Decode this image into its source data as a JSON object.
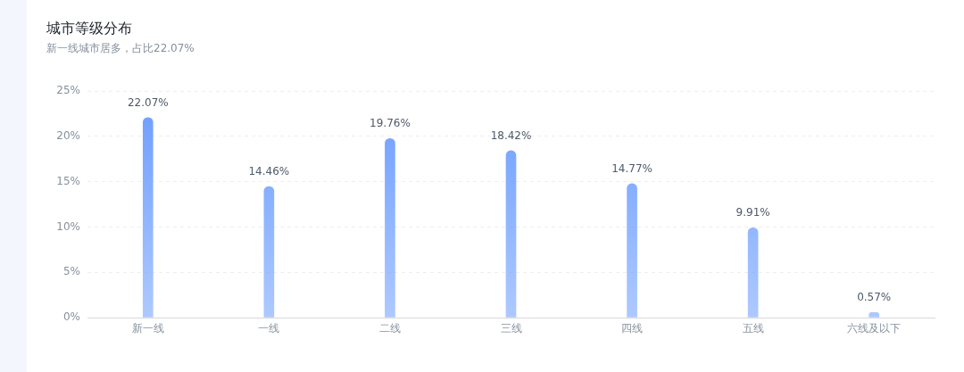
{
  "chart_data": {
    "type": "bar",
    "title": "城市等级分布",
    "subtitle": "新一线城市居多，占比22.07%",
    "categories": [
      "新一线",
      "一线",
      "二线",
      "三线",
      "四线",
      "五线",
      "六线及以下"
    ],
    "values": [
      22.07,
      14.46,
      19.76,
      18.42,
      14.77,
      9.91,
      0.57
    ],
    "value_labels": [
      "22.07%",
      "14.46%",
      "19.76%",
      "18.42%",
      "14.77%",
      "9.91%",
      "0.57%"
    ],
    "color": "#6a9cff",
    "ylim": [
      0,
      25
    ],
    "yticks": [
      {
        "value": 0,
        "label": "0%"
      },
      {
        "value": 5,
        "label": "5%"
      },
      {
        "value": 10,
        "label": "10%"
      },
      {
        "value": 15,
        "label": "15%"
      },
      {
        "value": 20,
        "label": "20%"
      },
      {
        "value": 25,
        "label": "25%"
      }
    ],
    "grid": "y",
    "legend": false
  }
}
